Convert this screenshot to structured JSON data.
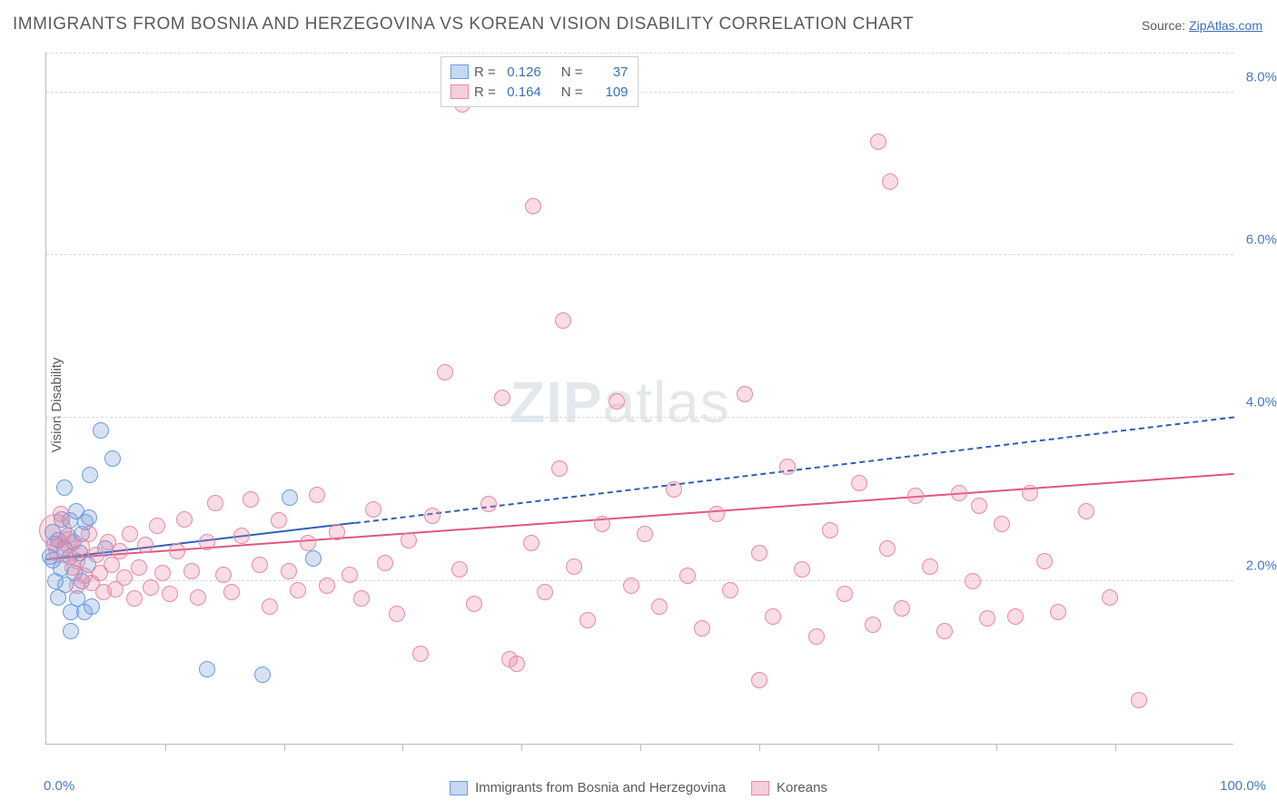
{
  "title": "IMMIGRANTS FROM BOSNIA AND HERZEGOVINA VS KOREAN VISION DISABILITY CORRELATION CHART",
  "source_label": "Source: ",
  "source_link_text": "ZipAtlas.com",
  "ylabel": "Vision Disability",
  "watermark_zip": "ZIP",
  "watermark_atlas": "atlas",
  "chart": {
    "type": "scatter",
    "xlim": [
      0,
      100
    ],
    "ylim": [
      0,
      8.5
    ],
    "yticks": [
      2.0,
      4.0,
      6.0,
      8.0
    ],
    "ytick_labels": [
      "2.0%",
      "4.0%",
      "6.0%",
      "8.0%"
    ],
    "xticks": [
      10,
      20,
      30,
      40,
      50,
      60,
      70,
      80,
      90
    ],
    "xlim_labels": [
      "0.0%",
      "100.0%"
    ],
    "background_color": "#ffffff",
    "grid_color": "#d8d8d8",
    "axis_color": "#bbbbbb",
    "tick_label_color": "#4978c8",
    "marker_radius": 9,
    "marker_stroke_width": 1.3,
    "series": [
      {
        "name": "Immigrants from Bosnia and Herzegovina",
        "fill": "rgba(120,160,220,0.30)",
        "stroke": "#6a9be0",
        "swatch_fill": "#c5d8f2",
        "swatch_border": "#6a9be0",
        "reg_color": "#2f5fb5",
        "R": "0.126",
        "N": "37",
        "reg_line": {
          "x1": 0,
          "y1": 2.25,
          "x2": 26,
          "y2": 2.7,
          "dash_after_x": 26,
          "x_end": 100,
          "y_end": 4.0
        },
        "points": [
          {
            "x": 0.3,
            "y": 2.3
          },
          {
            "x": 0.5,
            "y": 2.25
          },
          {
            "x": 0.5,
            "y": 2.6
          },
          {
            "x": 0.7,
            "y": 2.45
          },
          {
            "x": 0.8,
            "y": 2.0
          },
          {
            "x": 1.0,
            "y": 2.5
          },
          {
            "x": 1.0,
            "y": 1.8
          },
          {
            "x": 1.2,
            "y": 2.15
          },
          {
            "x": 1.3,
            "y": 2.75
          },
          {
            "x": 1.5,
            "y": 2.4
          },
          {
            "x": 1.5,
            "y": 3.15
          },
          {
            "x": 1.6,
            "y": 1.95
          },
          {
            "x": 1.8,
            "y": 2.55
          },
          {
            "x": 2.0,
            "y": 2.3
          },
          {
            "x": 2.0,
            "y": 2.74
          },
          {
            "x": 2.1,
            "y": 1.62
          },
          {
            "x": 2.1,
            "y": 1.38
          },
          {
            "x": 2.3,
            "y": 2.48
          },
          {
            "x": 2.4,
            "y": 2.1
          },
          {
            "x": 2.5,
            "y": 2.86
          },
          {
            "x": 2.6,
            "y": 1.78
          },
          {
            "x": 2.8,
            "y": 2.34
          },
          {
            "x": 3.0,
            "y": 2.58
          },
          {
            "x": 3.0,
            "y": 2.0
          },
          {
            "x": 3.2,
            "y": 1.62
          },
          {
            "x": 3.3,
            "y": 2.72
          },
          {
            "x": 3.5,
            "y": 2.2
          },
          {
            "x": 3.6,
            "y": 2.78
          },
          {
            "x": 3.7,
            "y": 3.3
          },
          {
            "x": 4.6,
            "y": 3.85
          },
          {
            "x": 5.0,
            "y": 2.4
          },
          {
            "x": 5.6,
            "y": 3.5
          },
          {
            "x": 3.8,
            "y": 1.68
          },
          {
            "x": 13.5,
            "y": 0.92
          },
          {
            "x": 18.2,
            "y": 0.85
          },
          {
            "x": 20.5,
            "y": 3.02
          },
          {
            "x": 22.5,
            "y": 2.28
          }
        ]
      },
      {
        "name": "Koreans",
        "fill": "rgba(235,130,160,0.28)",
        "stroke": "#e58aa5",
        "swatch_fill": "#f7cdd9",
        "swatch_border": "#e58aa5",
        "reg_color": "#e0567e",
        "R": "0.164",
        "N": "109",
        "reg_line": {
          "x1": 0,
          "y1": 2.25,
          "x2": 100,
          "y2": 3.3
        },
        "points": [
          {
            "x": 0.8,
            "y": 2.62,
            "r": 18
          },
          {
            "x": 1.2,
            "y": 2.38,
            "r": 14
          },
          {
            "x": 1.8,
            "y": 2.48,
            "r": 12
          },
          {
            "x": 1.2,
            "y": 2.82
          },
          {
            "x": 2.2,
            "y": 2.16
          },
          {
            "x": 2.6,
            "y": 1.94
          },
          {
            "x": 2.6,
            "y": 2.24
          },
          {
            "x": 3.0,
            "y": 2.42
          },
          {
            "x": 3.2,
            "y": 2.06
          },
          {
            "x": 3.6,
            "y": 2.58
          },
          {
            "x": 3.8,
            "y": 1.98
          },
          {
            "x": 4.2,
            "y": 2.32
          },
          {
            "x": 4.5,
            "y": 2.1
          },
          {
            "x": 4.8,
            "y": 1.86
          },
          {
            "x": 5.2,
            "y": 2.48
          },
          {
            "x": 5.5,
            "y": 2.2
          },
          {
            "x": 5.8,
            "y": 1.9
          },
          {
            "x": 6.2,
            "y": 2.36
          },
          {
            "x": 6.6,
            "y": 2.04
          },
          {
            "x": 7.0,
            "y": 2.58
          },
          {
            "x": 7.4,
            "y": 1.78
          },
          {
            "x": 7.8,
            "y": 2.16
          },
          {
            "x": 8.3,
            "y": 2.44
          },
          {
            "x": 8.8,
            "y": 1.92
          },
          {
            "x": 9.3,
            "y": 2.68
          },
          {
            "x": 9.8,
            "y": 2.1
          },
          {
            "x": 10.4,
            "y": 1.84
          },
          {
            "x": 11.0,
            "y": 2.36
          },
          {
            "x": 11.6,
            "y": 2.76
          },
          {
            "x": 12.2,
            "y": 2.12
          },
          {
            "x": 12.8,
            "y": 1.8
          },
          {
            "x": 13.5,
            "y": 2.48
          },
          {
            "x": 14.2,
            "y": 2.96
          },
          {
            "x": 14.9,
            "y": 2.08
          },
          {
            "x": 15.6,
            "y": 1.86
          },
          {
            "x": 16.4,
            "y": 2.56
          },
          {
            "x": 17.2,
            "y": 3.0
          },
          {
            "x": 18.0,
            "y": 2.2
          },
          {
            "x": 18.8,
            "y": 1.68
          },
          {
            "x": 19.6,
            "y": 2.74
          },
          {
            "x": 20.4,
            "y": 2.12
          },
          {
            "x": 21.2,
            "y": 1.88
          },
          {
            "x": 22.0,
            "y": 2.46
          },
          {
            "x": 22.8,
            "y": 3.06
          },
          {
            "x": 23.6,
            "y": 1.94
          },
          {
            "x": 24.5,
            "y": 2.6
          },
          {
            "x": 25.5,
            "y": 2.08
          },
          {
            "x": 26.5,
            "y": 1.78
          },
          {
            "x": 27.5,
            "y": 2.88
          },
          {
            "x": 28.5,
            "y": 2.22
          },
          {
            "x": 29.5,
            "y": 1.6
          },
          {
            "x": 30.5,
            "y": 2.5
          },
          {
            "x": 31.5,
            "y": 1.1
          },
          {
            "x": 32.5,
            "y": 2.8
          },
          {
            "x": 33.6,
            "y": 4.56
          },
          {
            "x": 34.8,
            "y": 2.14
          },
          {
            "x": 35.0,
            "y": 7.85
          },
          {
            "x": 36.0,
            "y": 1.72
          },
          {
            "x": 37.2,
            "y": 2.94
          },
          {
            "x": 38.4,
            "y": 4.25
          },
          {
            "x": 39.0,
            "y": 1.04
          },
          {
            "x": 39.6,
            "y": 0.98
          },
          {
            "x": 40.8,
            "y": 2.46
          },
          {
            "x": 41.0,
            "y": 6.6
          },
          {
            "x": 42.0,
            "y": 1.86
          },
          {
            "x": 43.2,
            "y": 3.38
          },
          {
            "x": 43.5,
            "y": 5.2
          },
          {
            "x": 44.4,
            "y": 2.18
          },
          {
            "x": 45.6,
            "y": 1.52
          },
          {
            "x": 46.8,
            "y": 2.7
          },
          {
            "x": 48.0,
            "y": 4.2
          },
          {
            "x": 49.2,
            "y": 1.94
          },
          {
            "x": 50.4,
            "y": 2.58
          },
          {
            "x": 51.6,
            "y": 1.68
          },
          {
            "x": 52.8,
            "y": 3.12
          },
          {
            "x": 54.0,
            "y": 2.06
          },
          {
            "x": 55.2,
            "y": 1.42
          },
          {
            "x": 56.4,
            "y": 2.82
          },
          {
            "x": 57.6,
            "y": 1.88
          },
          {
            "x": 58.8,
            "y": 4.3
          },
          {
            "x": 60.0,
            "y": 2.34
          },
          {
            "x": 60.0,
            "y": 0.78
          },
          {
            "x": 61.2,
            "y": 1.56
          },
          {
            "x": 62.4,
            "y": 3.4
          },
          {
            "x": 63.6,
            "y": 2.14
          },
          {
            "x": 64.8,
            "y": 1.32
          },
          {
            "x": 66.0,
            "y": 2.62
          },
          {
            "x": 67.2,
            "y": 1.84
          },
          {
            "x": 68.4,
            "y": 3.2
          },
          {
            "x": 69.6,
            "y": 1.46
          },
          {
            "x": 70.0,
            "y": 7.4
          },
          {
            "x": 70.8,
            "y": 2.4
          },
          {
            "x": 71.0,
            "y": 6.9
          },
          {
            "x": 72.0,
            "y": 1.66
          },
          {
            "x": 73.2,
            "y": 3.04
          },
          {
            "x": 74.4,
            "y": 2.18
          },
          {
            "x": 75.6,
            "y": 1.38
          },
          {
            "x": 76.8,
            "y": 3.08
          },
          {
            "x": 78.0,
            "y": 2.0
          },
          {
            "x": 79.2,
            "y": 1.54
          },
          {
            "x": 80.4,
            "y": 2.7
          },
          {
            "x": 81.6,
            "y": 1.56
          },
          {
            "x": 82.8,
            "y": 3.08
          },
          {
            "x": 84.0,
            "y": 2.24
          },
          {
            "x": 85.2,
            "y": 1.62
          },
          {
            "x": 87.5,
            "y": 2.86
          },
          {
            "x": 89.5,
            "y": 1.8
          },
          {
            "x": 92.0,
            "y": 0.54
          },
          {
            "x": 78.5,
            "y": 2.92
          }
        ]
      }
    ]
  },
  "legend_stats_labels": {
    "R": "R =",
    "N": "N ="
  },
  "legend_bottom_items": [
    {
      "series_index": 0
    },
    {
      "series_index": 1
    }
  ]
}
